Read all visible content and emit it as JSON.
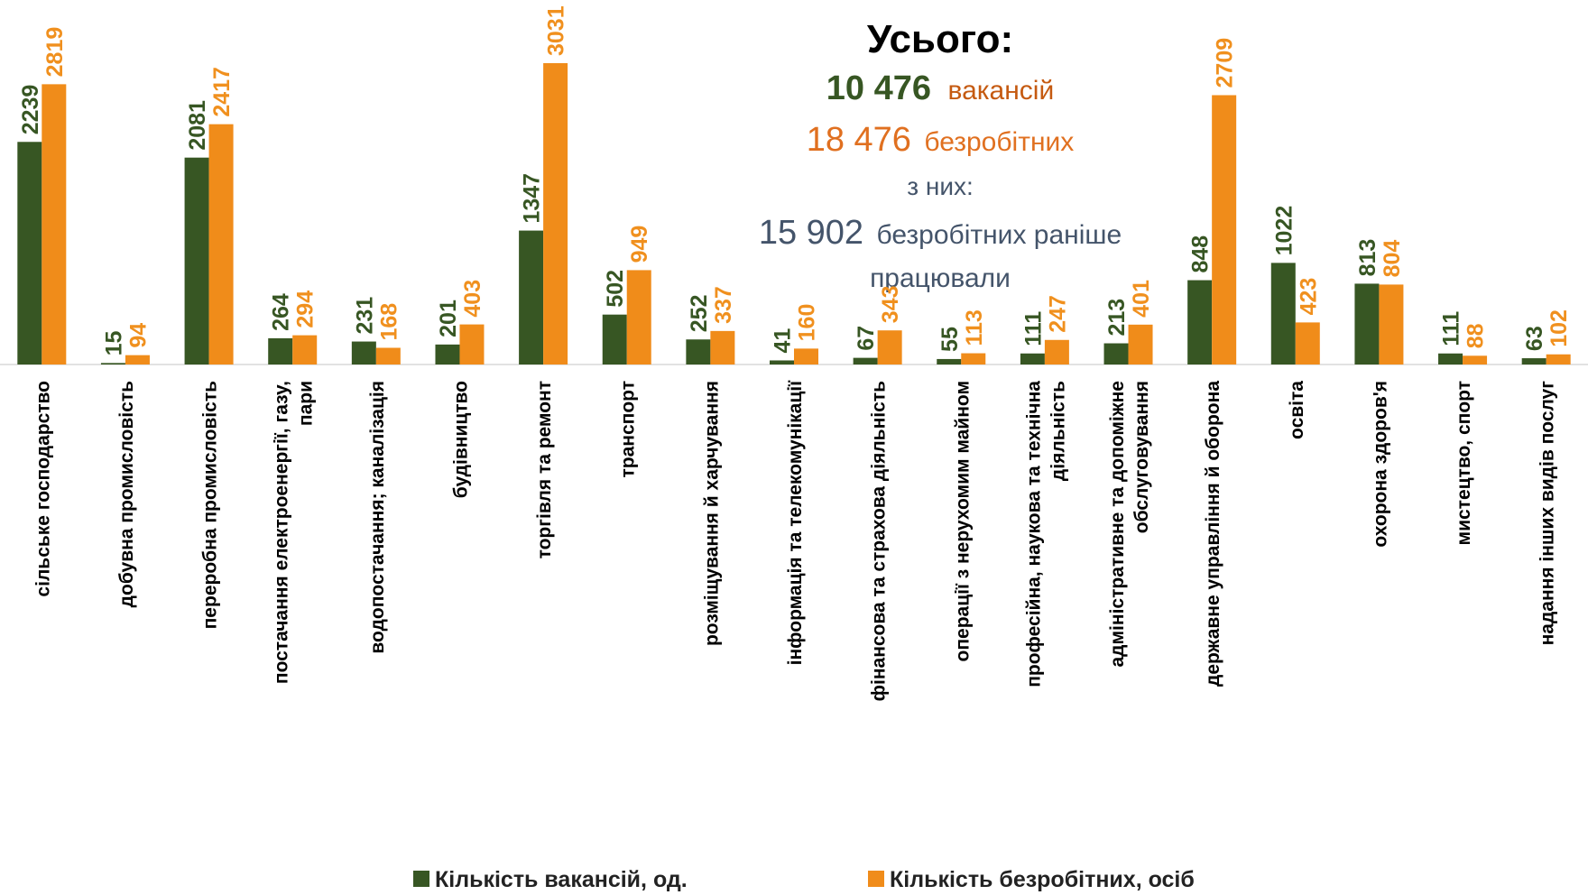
{
  "chart_data": {
    "type": "bar",
    "categories": [
      "сільське господарство",
      "добувна промисловість",
      "переробна промисловість",
      "постачання електроенергії, газу, пари",
      "водопостачання; каналізація",
      "будівництво",
      "торгівля та ремонт",
      "транспорт",
      "розміщування й харчування",
      "інформація та телекомунікації",
      "фінансова та страхова діяльність",
      "операції з нерухомим майном",
      "професійна, наукова та технічна діяльність",
      "адміністративне та допоміжне обслуговування",
      "державне управління й оборона",
      "освіта",
      "охорона здоров'я",
      "мистецтво, спорт",
      "надання інших видів послуг"
    ],
    "series": [
      {
        "name": "Кількість вакансій,  од.",
        "color": "#375623",
        "values": [
          2239,
          15,
          2081,
          264,
          231,
          201,
          1347,
          502,
          252,
          41,
          67,
          55,
          111,
          213,
          848,
          1022,
          813,
          111,
          63
        ]
      },
      {
        "name": "Кількість безробітних, осіб",
        "color": "#f08c1a",
        "values": [
          2819,
          94,
          2417,
          294,
          168,
          403,
          3031,
          949,
          337,
          160,
          343,
          113,
          247,
          401,
          2709,
          423,
          804,
          88,
          102
        ]
      }
    ],
    "annotations": {
      "heading": "Усього:",
      "vacancies": {
        "value": "10 476",
        "label": "вакансій"
      },
      "unemployed": {
        "value": "18 476",
        "label": "безробітних"
      },
      "of_them": "з них:",
      "previously_worked": {
        "value": "15 902",
        "label": "безробітних раніше працювали"
      }
    },
    "legend": "bottom"
  }
}
